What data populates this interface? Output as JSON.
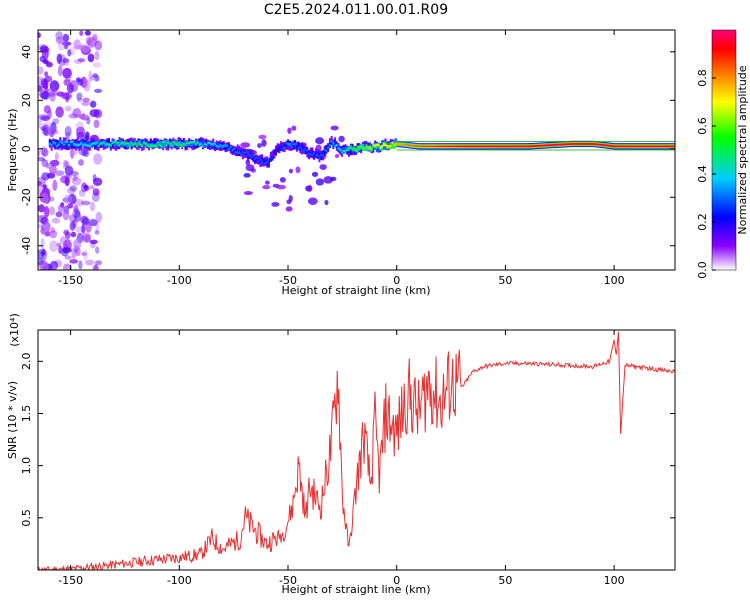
{
  "title": "C2E5.2024.011.00.01.R09",
  "chart_data": [
    {
      "type": "heatmap",
      "xlabel": "Height of straight line (km)",
      "ylabel": "Frequency (Hz)",
      "xlim": [
        -165,
        128
      ],
      "ylim": [
        -50,
        49
      ],
      "xticks": [
        "-150",
        "-100",
        "-50",
        "0",
        "50",
        "100"
      ],
      "yticks": [
        "-40",
        "-20",
        "0",
        "20",
        "40"
      ],
      "colorbar": {
        "label": "Normalized spectral amplitude",
        "range": [
          0,
          1
        ],
        "ticks": [
          "0.0",
          "0.2",
          "0.4",
          "0.6",
          "0.8"
        ],
        "colormap": [
          "#ffffff",
          "#8a00ff",
          "#0000ff",
          "#00ccff",
          "#00ff00",
          "#ffff00",
          "#ff7700",
          "#ff0000",
          "#ff0077"
        ]
      },
      "ridge": {
        "x": [
          -160,
          -140,
          -120,
          -100,
          -90,
          -80,
          -70,
          -60,
          -55,
          -50,
          -45,
          -40,
          -35,
          -30,
          -25,
          -20,
          -10,
          0,
          10,
          20,
          40,
          60,
          80,
          90,
          100,
          110,
          128
        ],
        "frequency": [
          2,
          2,
          2,
          2,
          2,
          1,
          -2,
          -6,
          0,
          2,
          1,
          -2,
          -3,
          3,
          -1,
          0,
          1,
          2,
          1,
          1,
          1,
          1,
          2,
          2,
          1,
          1,
          1
        ],
        "amplitude": [
          0.35,
          0.4,
          0.45,
          0.45,
          0.4,
          0.35,
          0.3,
          0.3,
          0.25,
          0.35,
          0.3,
          0.3,
          0.3,
          0.35,
          0.4,
          0.5,
          0.6,
          0.7,
          0.8,
          0.85,
          0.9,
          0.92,
          0.95,
          0.95,
          0.92,
          0.9,
          0.9
        ]
      }
    },
    {
      "type": "line",
      "xlabel": "Height of straight line (km)",
      "ylabel": "SNR (10 * v/v)",
      "y_multiplier": "(x10⁴)",
      "xlim": [
        -165,
        128
      ],
      "ylim": [
        0,
        2.3
      ],
      "xticks": [
        "-150",
        "-100",
        "-50",
        "0",
        "50",
        "100"
      ],
      "yticks": [
        "0.5",
        "1.0",
        "1.5",
        "2.0"
      ],
      "line_color": "#e83030",
      "series": [
        {
          "x": [
            -165,
            -150,
            -130,
            -110,
            -100,
            -90,
            -85,
            -80,
            -72,
            -70,
            -60,
            -52,
            -48,
            -45,
            -42,
            -40,
            -35,
            -30,
            -27,
            -25,
            -22,
            -18,
            -15,
            -12,
            -10,
            -8,
            -5,
            0,
            5,
            10,
            15,
            20,
            25,
            30,
            35,
            40,
            50,
            60,
            70,
            80,
            90,
            95,
            98,
            100,
            101,
            102,
            103,
            105,
            110,
            120,
            128
          ],
          "y": [
            0.0,
            0.01,
            0.05,
            0.1,
            0.12,
            0.15,
            0.3,
            0.2,
            0.3,
            0.5,
            0.25,
            0.35,
            0.6,
            1.0,
            0.5,
            0.8,
            0.6,
            1.2,
            1.9,
            0.7,
            0.2,
            0.9,
            1.3,
            0.8,
            1.4,
            0.9,
            1.5,
            1.3,
            1.7,
            1.5,
            1.8,
            1.6,
            1.8,
            1.75,
            1.9,
            1.95,
            1.98,
            1.98,
            1.97,
            1.96,
            1.95,
            1.98,
            2.0,
            2.2,
            2.05,
            2.3,
            1.3,
            1.96,
            1.95,
            1.92,
            1.9
          ]
        }
      ]
    }
  ]
}
